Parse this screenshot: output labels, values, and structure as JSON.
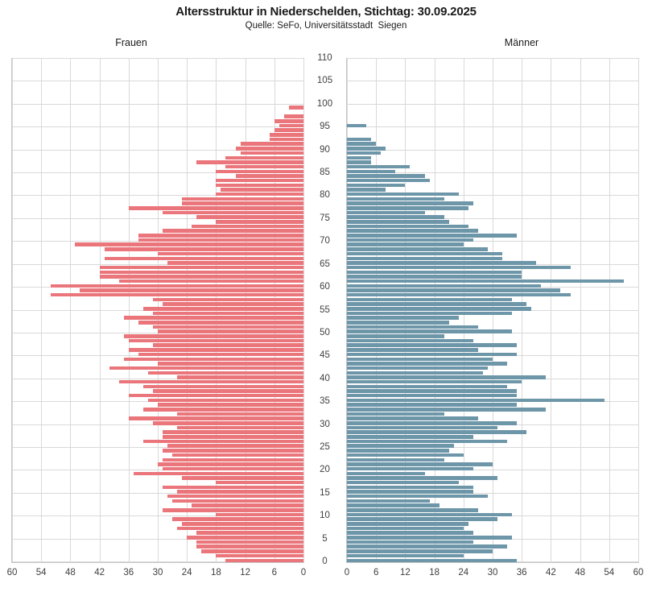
{
  "title": "Altersstruktur in Niederschelden, Stichtag: 30.09.2025",
  "subtitle": "Quelle: SeFo, Universitätsstadt  Siegen",
  "panels": {
    "left_label": "Frauen",
    "right_label": "Männer"
  },
  "colors": {
    "female_bar": "#EA767C",
    "male_bar": "#6D96A9",
    "grid": "#D9D9D9",
    "plot_border": "#C6C6C6",
    "title_text": "#1A1A1A",
    "tick_text": "#404040"
  },
  "chart_data": {
    "type": "bar",
    "variant": "population-pyramid",
    "title": "Altersstruktur in Niederschelden, Stichtag: 30.09.2025",
    "subtitle": "Quelle: SeFo, Universitätsstadt  Siegen",
    "age_axis": {
      "min": 0,
      "max": 110,
      "tick_step": 5,
      "ticks": [
        0,
        5,
        10,
        15,
        20,
        25,
        30,
        35,
        40,
        45,
        50,
        55,
        60,
        65,
        70,
        75,
        80,
        85,
        90,
        95,
        100,
        105,
        110
      ]
    },
    "value_axis": {
      "min": 0,
      "max": 60,
      "tick_step": 6,
      "ticks_left": [
        60,
        54,
        48,
        42,
        36,
        30,
        24,
        18,
        12,
        6,
        0
      ],
      "ticks_right": [
        0,
        6,
        12,
        18,
        24,
        30,
        36,
        42,
        48,
        54,
        60
      ]
    },
    "grid": true,
    "series": [
      {
        "name": "Frauen",
        "side": "left",
        "color": "#EA767C",
        "ages": "index equals age in years, 0..99",
        "values_by_age": [
          16,
          18,
          21,
          22,
          22,
          24,
          22,
          26,
          25,
          27,
          18,
          29,
          23,
          27,
          28,
          26,
          29,
          18,
          25,
          35,
          29,
          30,
          29,
          27,
          29,
          28,
          33,
          29,
          29,
          26,
          31,
          36,
          26,
          33,
          30,
          32,
          36,
          31,
          33,
          38,
          26,
          32,
          40,
          30,
          37,
          34,
          36,
          31,
          36,
          37,
          30,
          31,
          34,
          37,
          31,
          33,
          29,
          31,
          52,
          46,
          52,
          38,
          42,
          42,
          42,
          28,
          41,
          30,
          41,
          47,
          34,
          34,
          29,
          23,
          18,
          22,
          29,
          36,
          25,
          25,
          18,
          17,
          18,
          18,
          14,
          18,
          16,
          22,
          16,
          13,
          14,
          13,
          7,
          7,
          6,
          5,
          6,
          4,
          0,
          3
        ]
      },
      {
        "name": "Männer",
        "side": "right",
        "color": "#6D96A9",
        "ages": "index equals age in years, 0..99",
        "values_by_age": [
          35,
          24,
          30,
          33,
          26,
          34,
          26,
          24,
          25,
          31,
          34,
          27,
          19,
          17,
          29,
          26,
          26,
          23,
          31,
          16,
          26,
          30,
          20,
          24,
          21,
          22,
          33,
          26,
          37,
          31,
          35,
          27,
          20,
          41,
          35,
          53,
          35,
          35,
          33,
          36,
          41,
          28,
          29,
          33,
          30,
          35,
          27,
          35,
          26,
          20,
          34,
          27,
          21,
          23,
          34,
          38,
          37,
          34,
          46,
          44,
          40,
          57,
          36,
          36,
          46,
          39,
          32,
          32,
          29,
          24,
          26,
          35,
          27,
          25,
          21,
          20,
          16,
          25,
          26,
          20,
          23,
          8,
          12,
          17,
          16,
          10,
          13,
          5,
          5,
          7,
          8,
          6,
          5,
          0,
          0,
          4,
          0,
          0,
          0,
          0
        ]
      }
    ]
  }
}
